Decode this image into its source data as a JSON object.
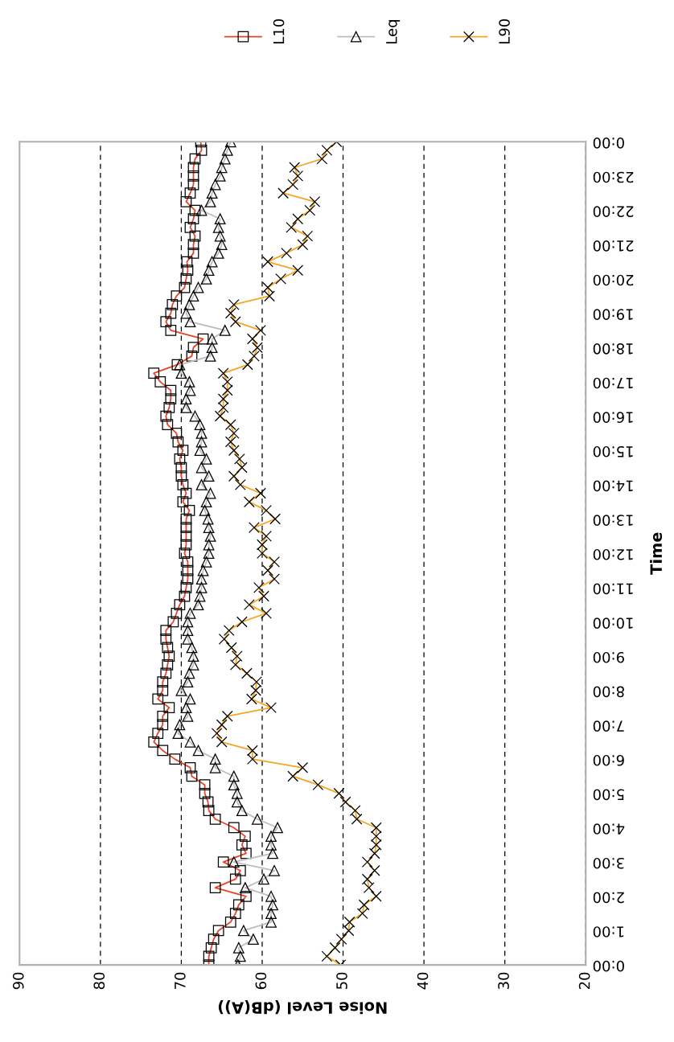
{
  "chart_data": {
    "type": "line",
    "orientation": "horizontal",
    "xlabel": "Noise Level (dB(A))",
    "ylabel": "Time",
    "xlim": [
      90,
      20
    ],
    "xticks": [
      90,
      80,
      70,
      60,
      50,
      40,
      30,
      20
    ],
    "ylim": [
      0,
      24
    ],
    "yticks": [
      {
        "value": 0,
        "label": "0:00"
      },
      {
        "value": 1,
        "label": "1:00"
      },
      {
        "value": 2,
        "label": "2:00"
      },
      {
        "value": 3,
        "label": "3:00"
      },
      {
        "value": 4,
        "label": "4:00"
      },
      {
        "value": 5,
        "label": "5:00"
      },
      {
        "value": 6,
        "label": "6:00"
      },
      {
        "value": 7,
        "label": "7:00"
      },
      {
        "value": 8,
        "label": "8:00"
      },
      {
        "value": 9,
        "label": "9:00"
      },
      {
        "value": 10,
        "label": "10:00"
      },
      {
        "value": 11,
        "label": "11:00"
      },
      {
        "value": 12,
        "label": "12:00"
      },
      {
        "value": 13,
        "label": "13:00"
      },
      {
        "value": 14,
        "label": "14:00"
      },
      {
        "value": 15,
        "label": "15:00"
      },
      {
        "value": 16,
        "label": "16:00"
      },
      {
        "value": 17,
        "label": "17:00"
      },
      {
        "value": 18,
        "label": "18:00"
      },
      {
        "value": 19,
        "label": "19:00"
      },
      {
        "value": 20,
        "label": "20:00"
      },
      {
        "value": 21,
        "label": "21:00"
      },
      {
        "value": 22,
        "label": "22:00"
      },
      {
        "value": 23,
        "label": "23:00"
      },
      {
        "value": 24,
        "label": "0:00"
      }
    ],
    "grid": "x",
    "legend": "top right",
    "line_style": "solid",
    "x": [
      0,
      0.25,
      0.5,
      0.75,
      1,
      1.25,
      1.5,
      1.75,
      2,
      2.25,
      2.5,
      2.75,
      3,
      3.25,
      3.5,
      3.75,
      4,
      4.25,
      4.5,
      4.75,
      5,
      5.25,
      5.5,
      5.75,
      6,
      6.25,
      6.5,
      6.75,
      7,
      7.25,
      7.5,
      7.75,
      8,
      8.25,
      8.5,
      8.75,
      9,
      9.25,
      9.5,
      9.75,
      10,
      10.25,
      10.5,
      10.75,
      11,
      11.25,
      11.5,
      11.75,
      12,
      12.25,
      12.5,
      12.75,
      13,
      13.25,
      13.5,
      13.75,
      14,
      14.25,
      14.5,
      14.75,
      15,
      15.25,
      15.5,
      15.75,
      16,
      16.25,
      16.5,
      16.75,
      17,
      17.25,
      17.5,
      17.75,
      18,
      18.25,
      18.5,
      18.75,
      19,
      19.25,
      19.5,
      19.75,
      20,
      20.25,
      20.5,
      20.75,
      21,
      21.25,
      21.5,
      21.75,
      22,
      22.25,
      22.5,
      22.75,
      23,
      23.25,
      23.5,
      23.75,
      24
    ],
    "series": [
      {
        "name": "L10",
        "color": "#e8442a",
        "marker": "square",
        "values": [
          66.6,
          66.6,
          66.3,
          66.0,
          65.4,
          63.9,
          63.3,
          62.9,
          62.0,
          65.8,
          63.3,
          62.7,
          64.8,
          62.0,
          62.5,
          62.1,
          63.5,
          65.8,
          66.6,
          66.7,
          67.1,
          67.1,
          68.7,
          68.9,
          70.8,
          72.3,
          73.4,
          72.9,
          72.3,
          72.3,
          71.5,
          72.9,
          72.3,
          72.3,
          71.9,
          71.7,
          71.5,
          71.7,
          71.9,
          71.9,
          71.0,
          70.6,
          70.2,
          69.6,
          69.4,
          69.2,
          69.2,
          69.2,
          69.6,
          69.4,
          69.4,
          69.4,
          69.4,
          69.0,
          69.8,
          69.4,
          69.8,
          70.0,
          70.0,
          70.2,
          69.8,
          70.4,
          70.6,
          71.7,
          71.9,
          71.5,
          71.3,
          71.3,
          72.6,
          73.4,
          70.5,
          68.7,
          68.5,
          67.3,
          71.3,
          71.9,
          71.3,
          71.1,
          70.6,
          69.6,
          69.4,
          69.2,
          69.3,
          68.5,
          68.5,
          68.3,
          68.9,
          68.5,
          68.3,
          69.4,
          68.9,
          68.5,
          68.5,
          68.5,
          68.3,
          67.5,
          67.6
        ]
      },
      {
        "name": "Leq",
        "color": "#bdbdbd",
        "marker": "triangle",
        "values": [
          63.0,
          62.7,
          62.9,
          61.1,
          62.3,
          58.9,
          58.9,
          58.7,
          58.9,
          62.1,
          59.8,
          58.5,
          63.5,
          58.7,
          58.9,
          58.9,
          58.1,
          60.6,
          62.5,
          63.1,
          63.1,
          63.5,
          63.5,
          65.8,
          65.8,
          67.9,
          68.9,
          70.4,
          70.2,
          69.2,
          69.4,
          68.9,
          70.0,
          69.2,
          69.0,
          68.5,
          68.5,
          68.7,
          69.2,
          69.2,
          69.2,
          68.9,
          67.9,
          67.7,
          67.5,
          67.5,
          67.3,
          66.9,
          66.6,
          66.6,
          66.4,
          66.6,
          66.7,
          67.1,
          66.9,
          66.4,
          67.5,
          66.6,
          67.5,
          66.9,
          67.7,
          67.5,
          67.5,
          67.7,
          68.3,
          69.4,
          69.4,
          68.9,
          69.0,
          70.0,
          70.2,
          66.4,
          66.2,
          66.2,
          64.6,
          68.9,
          69.4,
          69.0,
          68.5,
          67.9,
          66.9,
          66.6,
          66.2,
          65.4,
          65.0,
          65.2,
          65.4,
          65.2,
          67.5,
          66.4,
          66.2,
          65.8,
          65.2,
          65.0,
          64.6,
          64.3,
          63.9
        ]
      },
      {
        "name": "L90",
        "color": "#f5a623",
        "marker": "cross",
        "values": [
          50.3,
          52.0,
          51.0,
          50.2,
          49.3,
          49.2,
          47.6,
          47.4,
          45.9,
          46.8,
          47.0,
          46.1,
          47.0,
          46.1,
          45.9,
          45.9,
          45.9,
          48.3,
          48.5,
          49.7,
          50.5,
          53.1,
          56.2,
          55.0,
          61.2,
          61.2,
          65.0,
          65.6,
          65.0,
          64.3,
          58.9,
          61.3,
          60.8,
          60.7,
          61.9,
          63.3,
          63.1,
          63.8,
          64.7,
          64.1,
          62.5,
          59.5,
          61.6,
          59.8,
          60.4,
          58.5,
          59.3,
          58.5,
          60.0,
          60.0,
          59.5,
          61.0,
          58.4,
          59.5,
          61.6,
          60.2,
          62.7,
          63.5,
          62.5,
          62.8,
          63.5,
          63.9,
          63.5,
          63.9,
          65.2,
          64.8,
          64.8,
          64.3,
          64.3,
          64.8,
          61.8,
          61.0,
          60.6,
          61.2,
          60.2,
          63.3,
          63.9,
          63.5,
          59.1,
          59.3,
          57.7,
          55.6,
          59.3,
          57.0,
          55.0,
          54.4,
          56.4,
          55.6,
          54.1,
          53.5,
          57.4,
          56.2,
          55.6,
          56.0,
          52.6,
          52.0,
          50.8
        ]
      }
    ]
  }
}
